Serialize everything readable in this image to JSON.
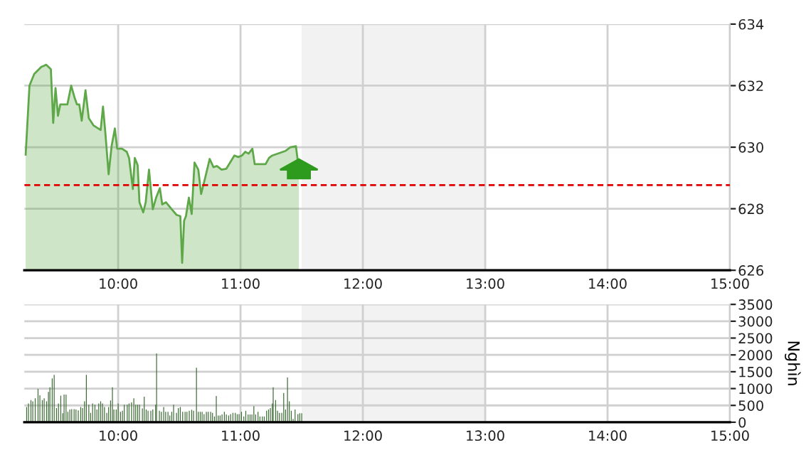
{
  "chart_data": [
    {
      "type": "area",
      "color": "#5fa84a",
      "x": [
        9.244,
        9.275,
        9.314,
        9.372,
        9.391,
        9.411,
        9.43,
        9.45,
        9.469,
        9.488,
        9.508,
        9.527,
        9.585,
        9.616,
        9.643,
        9.663,
        9.682,
        9.702,
        9.733,
        9.76,
        9.798,
        9.857,
        9.876,
        9.895,
        9.922,
        9.946,
        9.973,
        9.992,
        10.031,
        10.07,
        10.089,
        10.12,
        10.136,
        10.159,
        10.174,
        10.205,
        10.225,
        10.252,
        10.283,
        10.31,
        10.341,
        10.36,
        10.391,
        10.438,
        10.477,
        10.508,
        10.523,
        10.539,
        10.554,
        10.578,
        10.601,
        10.624,
        10.655,
        10.678,
        10.709,
        10.748,
        10.779,
        10.806,
        10.845,
        10.884,
        10.95,
        10.981,
        11.012,
        11.039,
        11.066,
        11.097,
        11.116,
        11.155,
        11.205,
        11.233,
        11.26,
        11.31,
        11.368,
        11.407,
        11.453,
        11.477
      ],
      "values": [
        629.76,
        632.0,
        632.38,
        632.61,
        632.64,
        632.68,
        632.61,
        632.53,
        630.79,
        631.92,
        631.02,
        631.39,
        631.39,
        632.0,
        631.62,
        631.39,
        631.39,
        630.86,
        631.85,
        630.94,
        630.71,
        630.56,
        631.32,
        630.48,
        629.12,
        630.03,
        630.61,
        629.95,
        629.95,
        629.85,
        629.65,
        628.64,
        629.65,
        629.42,
        628.21,
        627.88,
        628.21,
        629.27,
        627.98,
        628.36,
        628.67,
        628.14,
        628.21,
        627.98,
        627.8,
        627.76,
        626.24,
        627.61,
        627.76,
        628.36,
        627.83,
        629.5,
        629.27,
        628.48,
        628.97,
        629.62,
        629.35,
        629.39,
        629.27,
        629.3,
        629.73,
        629.68,
        629.73,
        629.85,
        629.79,
        629.95,
        629.45,
        629.45,
        629.45,
        629.65,
        629.73,
        629.8,
        629.88,
        630.0,
        630.03,
        629.27
      ],
      "xlim": [
        9.233,
        15
      ],
      "xticks": [
        {
          "value": 10,
          "label": "10:00"
        },
        {
          "value": 11,
          "label": "11:00"
        },
        {
          "value": 12,
          "label": "12:00"
        },
        {
          "value": 13,
          "label": "13:00"
        },
        {
          "value": 14,
          "label": "14:00"
        },
        {
          "value": 15,
          "label": "15:00"
        }
      ],
      "ylim": [
        626,
        634
      ],
      "yticks": [
        626,
        628,
        630,
        632,
        634
      ],
      "grid": true,
      "ref_lines": [
        {
          "axis": "y",
          "value": 628.77,
          "color": "#e00000",
          "line_style": "dashed"
        }
      ],
      "bands": [
        {
          "axis": "x",
          "from": 11.5,
          "to": 13,
          "color": "#f2f2f2"
        }
      ]
    },
    {
      "type": "bar",
      "color": "#3d6b35",
      "ylabel": "Nghìn",
      "x": [
        9.252,
        9.267,
        9.287,
        9.302,
        9.322,
        9.345,
        9.36,
        9.38,
        9.395,
        9.415,
        9.43,
        9.442,
        9.461,
        9.477,
        9.496,
        9.512,
        9.531,
        9.547,
        9.558,
        9.574,
        9.589,
        9.605,
        9.62,
        9.64,
        9.655,
        9.674,
        9.694,
        9.709,
        9.725,
        9.74,
        9.76,
        9.775,
        9.791,
        9.81,
        9.826,
        9.841,
        9.857,
        9.872,
        9.888,
        9.907,
        9.922,
        9.938,
        9.953,
        9.965,
        9.984,
        10.0,
        10.019,
        10.035,
        10.05,
        10.074,
        10.089,
        10.109,
        10.128,
        10.143,
        10.159,
        10.174,
        10.198,
        10.213,
        10.229,
        10.244,
        10.267,
        10.283,
        10.306,
        10.314,
        10.337,
        10.353,
        10.372,
        10.388,
        10.407,
        10.422,
        10.438,
        10.453,
        10.477,
        10.492,
        10.508,
        10.527,
        10.547,
        10.562,
        10.581,
        10.601,
        10.616,
        10.64,
        10.655,
        10.671,
        10.686,
        10.702,
        10.721,
        10.736,
        10.756,
        10.771,
        10.787,
        10.802,
        10.818,
        10.833,
        10.849,
        10.868,
        10.884,
        10.903,
        10.919,
        10.938,
        10.957,
        10.973,
        10.988,
        11.008,
        11.027,
        11.043,
        11.062,
        11.078,
        11.093,
        11.109,
        11.124,
        11.143,
        11.159,
        11.178,
        11.194,
        11.213,
        11.229,
        11.244,
        11.26,
        11.267,
        11.287,
        11.302,
        11.318,
        11.337,
        11.353,
        11.368,
        11.384,
        11.399,
        11.415,
        11.43,
        11.446,
        11.469,
        11.484,
        11.5
      ],
      "values": [
        450,
        560,
        660,
        620,
        710,
        990,
        800,
        660,
        710,
        620,
        900,
        1040,
        1300,
        1410,
        420,
        560,
        790,
        270,
        820,
        820,
        310,
        380,
        390,
        390,
        380,
        350,
        450,
        420,
        620,
        1410,
        520,
        280,
        560,
        520,
        380,
        560,
        620,
        560,
        450,
        280,
        450,
        650,
        1040,
        380,
        380,
        560,
        310,
        340,
        520,
        520,
        560,
        590,
        710,
        520,
        520,
        520,
        410,
        760,
        380,
        340,
        340,
        380,
        520,
        2040,
        340,
        310,
        450,
        310,
        310,
        200,
        310,
        520,
        280,
        420,
        450,
        310,
        310,
        310,
        340,
        370,
        340,
        1620,
        310,
        310,
        310,
        240,
        310,
        310,
        310,
        280,
        170,
        780,
        200,
        200,
        230,
        310,
        230,
        200,
        240,
        280,
        280,
        240,
        240,
        310,
        170,
        340,
        230,
        230,
        230,
        480,
        230,
        310,
        170,
        170,
        170,
        340,
        380,
        420,
        560,
        1040,
        660,
        340,
        280,
        280,
        870,
        380,
        1330,
        620,
        340,
        100,
        380,
        240,
        270,
        270
      ],
      "xlim": [
        9.233,
        15
      ],
      "xticks": [
        {
          "value": 10,
          "label": "10:00"
        },
        {
          "value": 11,
          "label": "11:00"
        },
        {
          "value": 12,
          "label": "12:00"
        },
        {
          "value": 13,
          "label": "13:00"
        },
        {
          "value": 14,
          "label": "14:00"
        },
        {
          "value": 15,
          "label": "15:00"
        }
      ],
      "ylim": [
        0,
        3500
      ],
      "yticks": [
        0,
        500,
        1000,
        1500,
        2000,
        2500,
        3000,
        3500
      ],
      "grid": true,
      "bands": [
        {
          "axis": "x",
          "from": 11.5,
          "to": 13,
          "color": "#f2f2f2"
        }
      ]
    }
  ]
}
